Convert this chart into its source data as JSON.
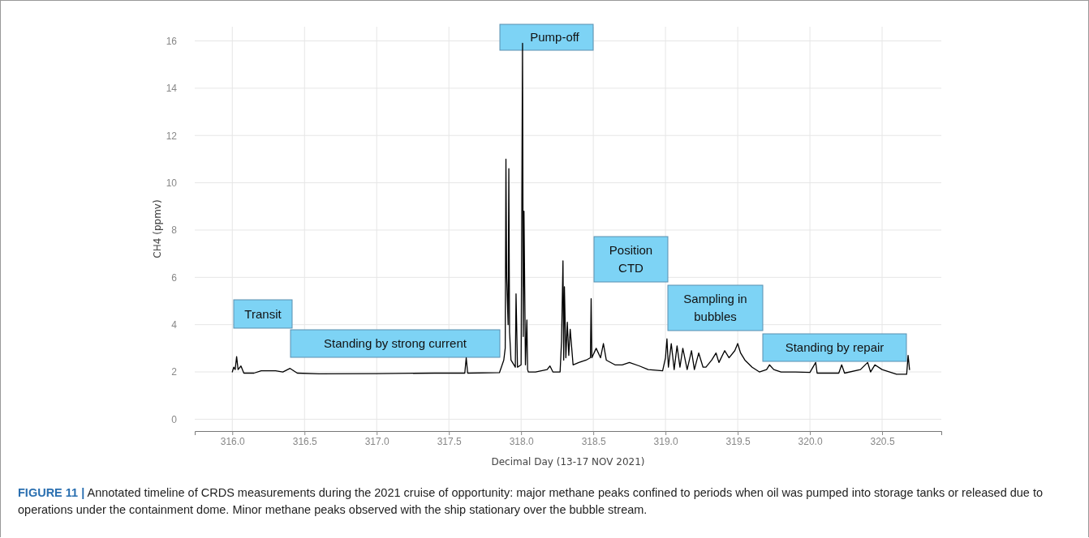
{
  "chart_data": {
    "type": "line",
    "xlabel": "Decimal Day (13-17 NOV 2021)",
    "ylabel": "CH4 (ppmv)",
    "xlim": [
      315.74,
      320.91
    ],
    "xticks": [
      {
        "value": 316,
        "label": "316.0"
      },
      {
        "value": 316.5,
        "label": "316.5"
      },
      {
        "value": 317,
        "label": "317.0"
      },
      {
        "value": 317.5,
        "label": "317.5"
      },
      {
        "value": 318,
        "label": "318.0"
      },
      {
        "value": 318.5,
        "label": "318.5"
      },
      {
        "value": 319,
        "label": "319.0"
      },
      {
        "value": 319.5,
        "label": "319.5"
      },
      {
        "value": 320,
        "label": "320.0"
      },
      {
        "value": 320.5,
        "label": "320.5"
      }
    ],
    "ylim": [
      -0.5,
      16.6
    ],
    "yticks": [
      0,
      2,
      4,
      6,
      8,
      10,
      12,
      14,
      16
    ],
    "grid": true,
    "marker": "none",
    "line_style": "solid",
    "x": [
      316.0,
      316.01,
      316.02,
      316.03,
      316.04,
      316.06,
      316.08,
      316.15,
      316.2,
      316.3,
      316.35,
      316.4,
      316.45,
      316.6,
      317.0,
      317.4,
      317.61,
      317.62,
      317.63,
      317.85,
      317.88,
      317.89,
      317.895,
      317.9,
      317.91,
      317.915,
      317.92,
      317.93,
      317.96,
      317.965,
      317.975,
      318.0,
      318.005,
      318.01,
      318.015,
      318.02,
      318.03,
      318.04,
      318.045,
      318.05,
      318.1,
      318.18,
      318.2,
      318.22,
      318.27,
      318.28,
      318.29,
      318.295,
      318.3,
      318.31,
      318.32,
      318.33,
      318.34,
      318.36,
      318.4,
      318.45,
      318.48,
      318.485,
      318.49,
      318.52,
      318.55,
      318.57,
      318.59,
      318.65,
      318.7,
      318.75,
      318.82,
      318.88,
      318.98,
      319.0,
      319.01,
      319.02,
      319.04,
      319.06,
      319.08,
      319.1,
      319.12,
      319.15,
      319.18,
      319.2,
      319.23,
      319.26,
      319.28,
      319.32,
      319.35,
      319.37,
      319.41,
      319.44,
      319.48,
      319.5,
      319.52,
      319.55,
      319.6,
      319.65,
      319.7,
      319.72,
      319.75,
      319.8,
      319.9,
      320.0,
      320.04,
      320.05,
      320.2,
      320.22,
      320.24,
      320.35,
      320.4,
      320.42,
      320.45,
      320.5,
      320.6,
      320.67,
      320.68,
      320.69
    ],
    "series": [
      {
        "color": "#000000",
        "values": [
          2.0,
          2.2,
          2.1,
          2.65,
          2.1,
          2.25,
          1.95,
          1.95,
          2.05,
          2.05,
          2.0,
          2.15,
          1.95,
          1.92,
          1.93,
          1.95,
          1.95,
          2.6,
          1.95,
          1.97,
          2.5,
          3.0,
          11.0,
          6.0,
          4.0,
          10.6,
          3.7,
          2.5,
          2.2,
          5.3,
          2.2,
          2.3,
          8.7,
          15.9,
          3.5,
          8.8,
          2.3,
          4.2,
          2.1,
          2.0,
          2.0,
          2.1,
          2.25,
          2.0,
          2.0,
          3.3,
          6.7,
          2.5,
          5.6,
          2.6,
          4.1,
          2.7,
          3.8,
          2.3,
          2.4,
          2.5,
          2.6,
          5.1,
          2.6,
          3.0,
          2.6,
          3.2,
          2.5,
          2.3,
          2.3,
          2.4,
          2.25,
          2.1,
          2.05,
          2.6,
          3.4,
          2.2,
          3.2,
          2.1,
          3.1,
          2.2,
          3.0,
          2.1,
          2.9,
          2.1,
          2.8,
          2.2,
          2.2,
          2.5,
          2.8,
          2.4,
          2.9,
          2.6,
          2.9,
          3.2,
          2.8,
          2.5,
          2.2,
          2.0,
          2.1,
          2.3,
          2.1,
          2.0,
          2.0,
          1.98,
          2.4,
          1.95,
          1.95,
          2.3,
          1.95,
          2.1,
          2.4,
          2.0,
          2.3,
          2.1,
          1.9,
          1.9,
          2.7,
          2.1
        ]
      }
    ],
    "annotations": [
      "Transit",
      "Standing by strong current",
      "Pump-off",
      "Position\nCTD",
      "Sampling in\nbubbles",
      "Standing by repair",
      "FIGURE 11 | Annotated timeline of CRDS measurements during the 2021 cruise of opportunity: major methane peaks confined to periods when oil was pumped into storage tanks or released due to operations under the containment dome. Minor methane peaks observed with the ship stationary over the bubble stream."
    ]
  }
}
